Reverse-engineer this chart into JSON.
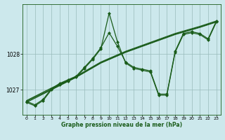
{
  "xlabel": "Graphe pression niveau de la mer (hPa)",
  "bg_color": "#cce8ec",
  "line_color": "#1a5c1a",
  "grid_color": "#99bbbb",
  "ylim": [
    1026.3,
    1029.4
  ],
  "xlim": [
    -0.5,
    23.5
  ],
  "yticks": [
    1027,
    1028
  ],
  "xticks": [
    0,
    1,
    2,
    3,
    4,
    5,
    6,
    7,
    8,
    9,
    10,
    11,
    12,
    13,
    14,
    15,
    16,
    17,
    18,
    19,
    20,
    21,
    22,
    23
  ],
  "series": [
    {
      "x": [
        0,
        1,
        2,
        3,
        4,
        5,
        6,
        7,
        8,
        9,
        10,
        11,
        12,
        13,
        14,
        15,
        16,
        17,
        18,
        19,
        20,
        21,
        22,
        23
      ],
      "y": [
        1026.65,
        1026.55,
        1026.7,
        1027.0,
        1027.15,
        1027.25,
        1027.35,
        1027.6,
        1027.85,
        1028.15,
        1029.15,
        1028.35,
        1027.75,
        1027.6,
        1027.55,
        1027.5,
        1026.85,
        1026.85,
        1028.05,
        1028.55,
        1028.6,
        1028.55,
        1028.4,
        1028.9
      ],
      "marker": "D",
      "ms": 2.0,
      "lw": 0.9
    },
    {
      "x": [
        0,
        3,
        6,
        9,
        12,
        15,
        18,
        21,
        23
      ],
      "y": [
        1026.65,
        1027.0,
        1027.35,
        1027.75,
        1028.05,
        1028.3,
        1028.55,
        1028.75,
        1028.9
      ],
      "marker": null,
      "ms": 0,
      "lw": 0.9
    },
    {
      "x": [
        0,
        3,
        6,
        9,
        12,
        15,
        18,
        21,
        23
      ],
      "y": [
        1026.7,
        1027.05,
        1027.38,
        1027.78,
        1028.08,
        1028.33,
        1028.58,
        1028.78,
        1028.93
      ],
      "marker": null,
      "ms": 0,
      "lw": 0.9
    },
    {
      "x": [
        0,
        3,
        6,
        9,
        12,
        15,
        18,
        21,
        23
      ],
      "y": [
        1026.68,
        1027.02,
        1027.36,
        1027.76,
        1028.06,
        1028.31,
        1028.56,
        1028.76,
        1028.91
      ],
      "marker": null,
      "ms": 0,
      "lw": 0.9
    },
    {
      "x": [
        0,
        1,
        2,
        3,
        4,
        5,
        6,
        7,
        8,
        9,
        10,
        11,
        12,
        13,
        14,
        15,
        16,
        17,
        18,
        19,
        20,
        21,
        22,
        23
      ],
      "y": [
        1026.68,
        1026.58,
        1026.73,
        1027.03,
        1027.18,
        1027.28,
        1027.38,
        1027.63,
        1027.88,
        1028.18,
        1028.6,
        1028.22,
        1027.78,
        1027.63,
        1027.58,
        1027.53,
        1026.88,
        1026.88,
        1028.08,
        1028.58,
        1028.63,
        1028.58,
        1028.43,
        1028.93
      ],
      "marker": "D",
      "ms": 2.0,
      "lw": 0.9
    }
  ]
}
